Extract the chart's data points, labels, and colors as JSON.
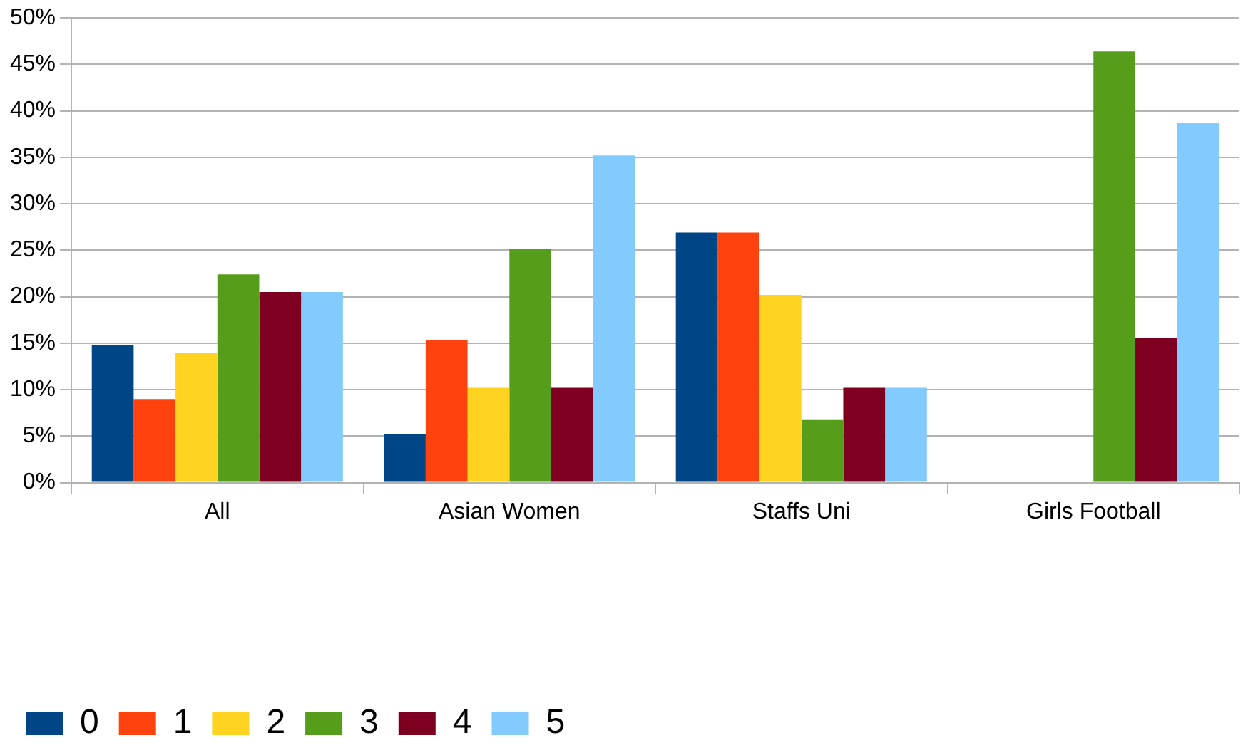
{
  "chart_data": {
    "type": "bar",
    "categories": [
      "All",
      "Asian Women",
      "Staffs Uni",
      "Girls Football"
    ],
    "series": [
      {
        "name": "0",
        "color": "#004586",
        "values": [
          14.8,
          5.2,
          26.9,
          0
        ]
      },
      {
        "name": "1",
        "color": "#ff420e",
        "values": [
          9.0,
          15.3,
          26.9,
          0
        ]
      },
      {
        "name": "2",
        "color": "#ffd320",
        "values": [
          14.0,
          10.2,
          20.2,
          0
        ]
      },
      {
        "name": "3",
        "color": "#579d1c",
        "values": [
          22.4,
          25.1,
          6.8,
          46.4
        ]
      },
      {
        "name": "4",
        "color": "#7e0021",
        "values": [
          20.5,
          10.2,
          10.2,
          15.6
        ]
      },
      {
        "name": "5",
        "color": "#83caff",
        "values": [
          20.5,
          35.2,
          10.2,
          38.7
        ]
      }
    ],
    "ylim": [
      0,
      50
    ],
    "yticks": [
      {
        "value": 0,
        "label": "0%"
      },
      {
        "value": 5,
        "label": "5%"
      },
      {
        "value": 10,
        "label": "10%"
      },
      {
        "value": 15,
        "label": "15%"
      },
      {
        "value": 20,
        "label": "20%"
      },
      {
        "value": 25,
        "label": "25%"
      },
      {
        "value": 30,
        "label": "30%"
      },
      {
        "value": 35,
        "label": "35%"
      },
      {
        "value": 40,
        "label": "40%"
      },
      {
        "value": 45,
        "label": "45%"
      },
      {
        "value": 50,
        "label": "50%"
      }
    ],
    "grid": "y",
    "legend": "bottom left"
  }
}
